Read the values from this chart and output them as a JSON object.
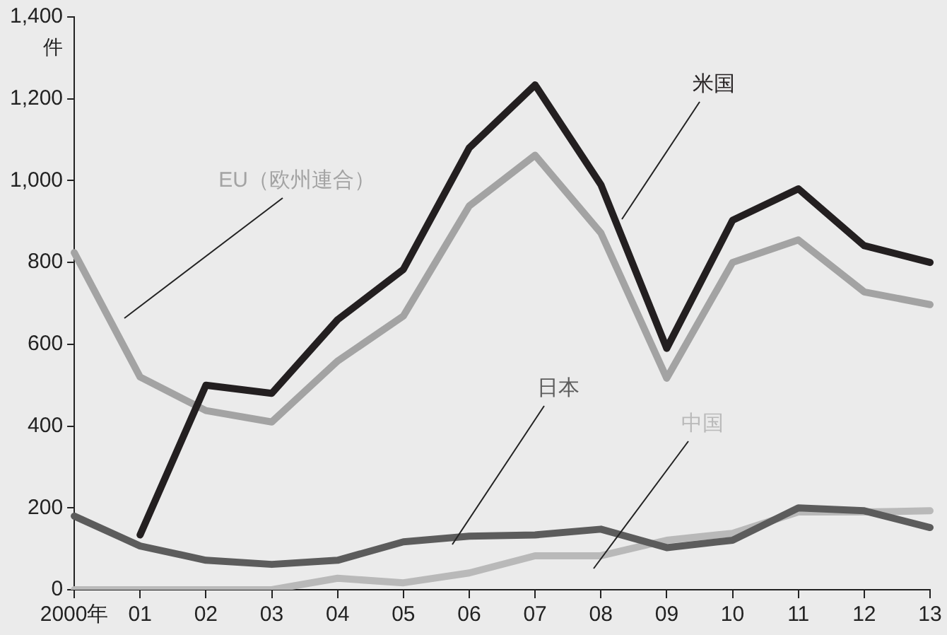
{
  "chart_data": {
    "type": "line",
    "ylabel": "件",
    "categories": [
      "2000年",
      "01",
      "02",
      "03",
      "04",
      "05",
      "06",
      "07",
      "08",
      "09",
      "10",
      "11",
      "12",
      "13"
    ],
    "series": [
      {
        "name": "米国",
        "color": "#231f20",
        "values": [
          null,
          134,
          500,
          480,
          660,
          783,
          1080,
          1234,
          990,
          590,
          903,
          980,
          841,
          800
        ]
      },
      {
        "name": "EU（欧州連合）",
        "color": "#a3a3a3",
        "values": [
          824,
          520,
          438,
          410,
          559,
          669,
          938,
          1062,
          872,
          517,
          800,
          855,
          728,
          697
        ]
      },
      {
        "name": "日本",
        "color": "#5c5c5c",
        "values": [
          180,
          107,
          72,
          62,
          72,
          117,
          131,
          134,
          148,
          103,
          121,
          200,
          193,
          152
        ]
      },
      {
        "name": "中国",
        "color": "#b9b9b9",
        "values": [
          0,
          0,
          0,
          0,
          28,
          17,
          41,
          83,
          83,
          121,
          138,
          190,
          190,
          193
        ]
      }
    ],
    "ylim": [
      0,
      1400
    ],
    "yticks": [
      0,
      200,
      400,
      600,
      800,
      {
        "value": 1000,
        "label": "1,000"
      },
      {
        "value": 1200,
        "label": "1,200"
      },
      {
        "value": 1400,
        "label": "1,400"
      }
    ],
    "grid": false,
    "legend": false,
    "marker": "none",
    "line_style": "solid"
  }
}
